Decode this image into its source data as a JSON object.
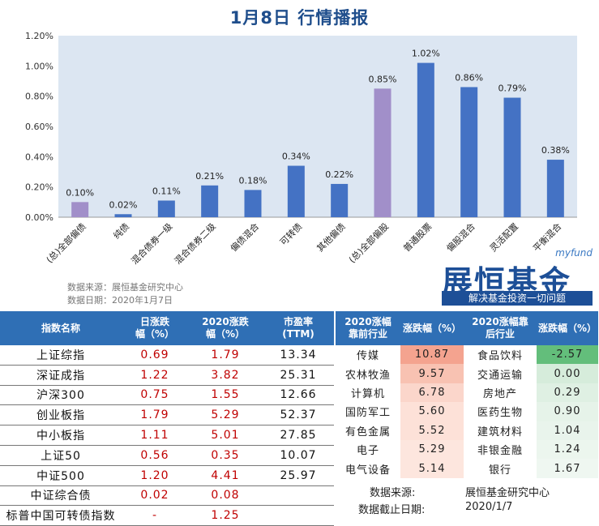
{
  "title": "1月8日  行情播报",
  "chart_data": {
    "type": "bar",
    "categories": [
      "(总)全部偏债",
      "纯债",
      "混合债券一级",
      "混合债券二级",
      "偏债混合",
      "可转债",
      "其他偏债",
      "(总)全部偏股",
      "普通股票",
      "偏股混合",
      "灵活配置",
      "平衡混合"
    ],
    "values": [
      0.1,
      0.02,
      0.11,
      0.21,
      0.18,
      0.34,
      0.22,
      0.85,
      1.02,
      0.86,
      0.79,
      0.38
    ],
    "value_labels": [
      "0.10%",
      "0.02%",
      "0.11%",
      "0.21%",
      "0.18%",
      "0.34%",
      "0.22%",
      "0.85%",
      "1.02%",
      "0.86%",
      "0.79%",
      "0.38%"
    ],
    "highlight": [
      0,
      7
    ],
    "y_ticks": [
      "0.00%",
      "0.20%",
      "0.40%",
      "0.60%",
      "0.80%",
      "1.00%",
      "1.20%"
    ],
    "ylim": [
      0,
      1.2
    ],
    "colors": {
      "normal": "#4472c4",
      "highlight": "#a18fc9",
      "plot_bg": "#dce6f2"
    }
  },
  "source_line1": "数据来源：展恒基金研究中心",
  "source_line2": "数据日期：2020年1月7日",
  "logo": {
    "en": "myfund",
    "cn": "展恒基金",
    "tagline": "解决基金投资一切问题"
  },
  "index_table": {
    "headers": [
      "指数名称",
      "日涨跌\n幅（%）",
      "2020涨跌\n幅（%）",
      "市盈率\n(TTM)"
    ],
    "rows": [
      [
        "上证综指",
        "0.69",
        "1.79",
        "13.34"
      ],
      [
        "深证成指",
        "1.22",
        "3.82",
        "25.31"
      ],
      [
        "沪深300",
        "0.75",
        "1.55",
        "12.66"
      ],
      [
        "创业板指",
        "1.79",
        "5.29",
        "52.37"
      ],
      [
        "中小板指",
        "1.11",
        "5.01",
        "27.85"
      ],
      [
        "上证50",
        "0.56",
        "0.35",
        "10.07"
      ],
      [
        "中证500",
        "1.20",
        "4.41",
        "25.97"
      ],
      [
        "中证综合债",
        "0.02",
        "0.08",
        ""
      ],
      [
        "标普中国可转债指数",
        "-",
        "1.25",
        ""
      ]
    ]
  },
  "industry_table": {
    "headers": [
      "2020涨幅\n靠前行业",
      "涨跌幅（%）",
      "2020涨幅靠\n后行业",
      "涨跌幅（%）"
    ],
    "rows": [
      [
        "传媒",
        "10.87",
        "食品饮料",
        "-2.57"
      ],
      [
        "农林牧渔",
        "9.57",
        "交通运输",
        "0.00"
      ],
      [
        "计算机",
        "6.78",
        "房地产",
        "0.29"
      ],
      [
        "国防军工",
        "5.60",
        "医药生物",
        "0.90"
      ],
      [
        "有色金属",
        "5.52",
        "建筑材料",
        "1.04"
      ],
      [
        "电子",
        "5.29",
        "非银金融",
        "1.24"
      ],
      [
        "电气设备",
        "5.14",
        "银行",
        "1.67"
      ]
    ],
    "top_colors": [
      "#f4a38f",
      "#f8c2b2",
      "#fbd6cb",
      "#fde1d8",
      "#fde1d8",
      "#fde6de",
      "#fde6de"
    ],
    "bottom_colors": [
      "#63be7b",
      "#d6ecdb",
      "#dff0e3",
      "#e6f3e9",
      "#e9f4ec",
      "#ecf6ee",
      "#eff7f1"
    ]
  },
  "footer": {
    "source_label": "数据来源:",
    "source_value": "展恒基金研究中心",
    "date_label": "数据截止日期:",
    "date_value": "2020/1/7"
  }
}
